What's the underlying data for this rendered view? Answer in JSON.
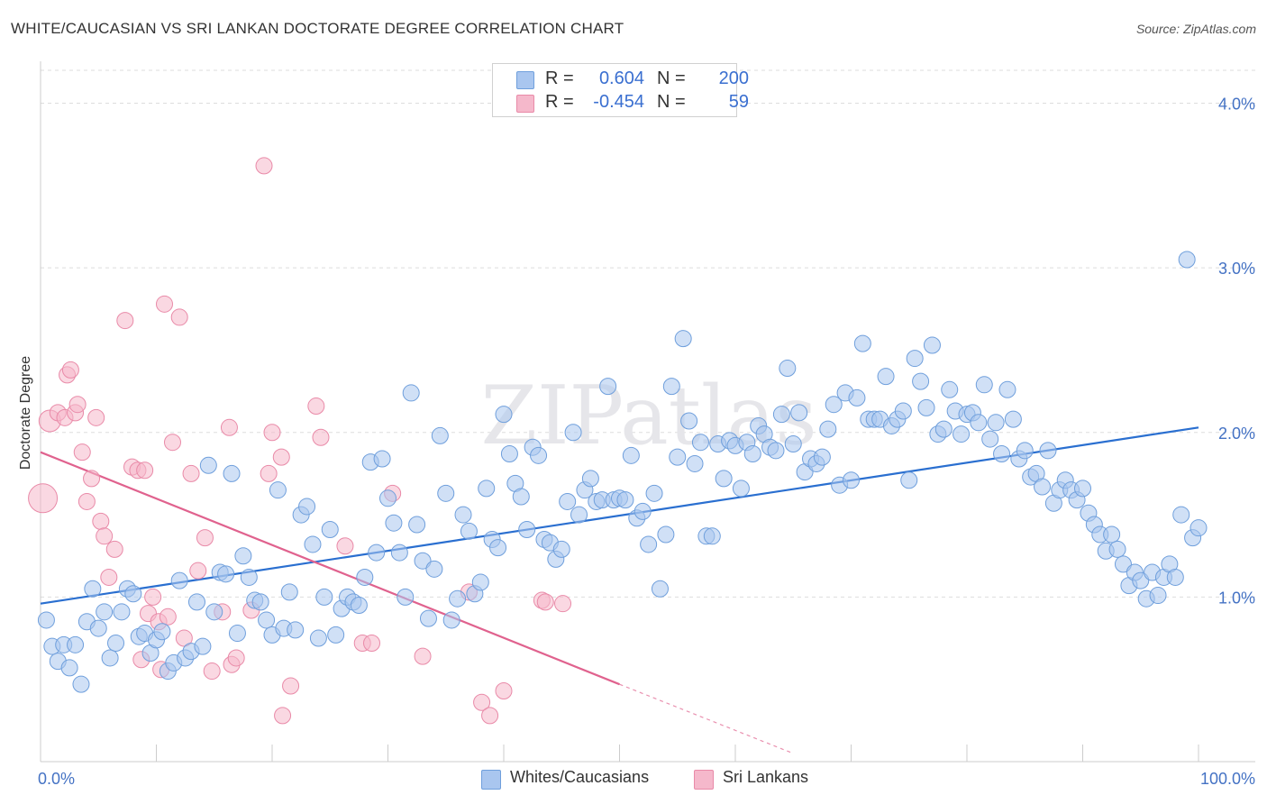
{
  "title": "WHITE/CAUCASIAN VS SRI LANKAN DOCTORATE DEGREE CORRELATION CHART",
  "source": "Source: ZipAtlas.com",
  "watermark": "ZIPatlas",
  "legend_top": {
    "rows": [
      {
        "r_label": "R =",
        "r_value": "0.604",
        "n_label": "N =",
        "n_value": "200"
      },
      {
        "r_label": "R =",
        "r_value": "-0.454",
        "n_label": "N =",
        "n_value": "59"
      }
    ]
  },
  "legend_bottom": {
    "items": [
      {
        "label": "Whites/Caucasians"
      },
      {
        "label": "Sri Lankans"
      }
    ]
  },
  "colors": {
    "blue_fill": "#a9c6ef",
    "blue_stroke": "#6f9fdc",
    "blue_line": "#2a6fd0",
    "pink_fill": "#f5b8cb",
    "pink_stroke": "#e98aa8",
    "pink_line": "#e0628e",
    "grid": "#dddddd",
    "axis_text": "#4472c4"
  },
  "chart_data": {
    "type": "scatter",
    "title": "WHITE/CAUCASIAN VS SRI LANKAN DOCTORATE DEGREE CORRELATION CHART",
    "xlabel": "",
    "ylabel": "Doctorate Degree",
    "xlim": [
      0,
      100
    ],
    "ylim": [
      0,
      4.2
    ],
    "x_tick_labels": [
      "0.0%",
      "100.0%"
    ],
    "y_ticks": [
      1.0,
      2.0,
      3.0,
      4.0
    ],
    "y_tick_labels": [
      "1.0%",
      "2.0%",
      "3.0%",
      "4.0%"
    ],
    "grid": true,
    "series": [
      {
        "name": "Whites/Caucasians",
        "r": 0.604,
        "n": 200,
        "trend": {
          "x0": 0,
          "y0": 0.96,
          "x1": 100,
          "y1": 2.03
        },
        "points": [
          [
            0.5,
            0.86
          ],
          [
            1,
            0.7
          ],
          [
            1.5,
            0.61
          ],
          [
            2,
            0.71
          ],
          [
            2.5,
            0.57
          ],
          [
            3,
            0.71
          ],
          [
            3.5,
            0.47
          ],
          [
            4,
            0.85
          ],
          [
            4.5,
            1.05
          ],
          [
            5,
            0.81
          ],
          [
            5.5,
            0.91
          ],
          [
            6,
            0.63
          ],
          [
            6.5,
            0.72
          ],
          [
            7,
            0.91
          ],
          [
            7.5,
            1.05
          ],
          [
            8,
            1.02
          ],
          [
            8.5,
            0.76
          ],
          [
            9,
            0.78
          ],
          [
            9.5,
            0.66
          ],
          [
            10,
            0.74
          ],
          [
            10.5,
            0.79
          ],
          [
            11,
            0.55
          ],
          [
            11.5,
            0.6
          ],
          [
            12,
            1.1
          ],
          [
            12.5,
            0.63
          ],
          [
            13,
            0.67
          ],
          [
            13.5,
            0.97
          ],
          [
            14,
            0.7
          ],
          [
            14.5,
            1.8
          ],
          [
            15,
            0.91
          ],
          [
            15.5,
            1.15
          ],
          [
            16,
            1.14
          ],
          [
            16.5,
            1.75
          ],
          [
            17,
            0.78
          ],
          [
            17.5,
            1.25
          ],
          [
            18,
            1.12
          ],
          [
            18.5,
            0.98
          ],
          [
            19,
            0.97
          ],
          [
            19.5,
            0.86
          ],
          [
            20,
            0.77
          ],
          [
            20.5,
            1.65
          ],
          [
            21,
            0.81
          ],
          [
            21.5,
            1.03
          ],
          [
            22,
            0.8
          ],
          [
            22.5,
            1.5
          ],
          [
            23,
            1.55
          ],
          [
            23.5,
            1.32
          ],
          [
            24,
            0.75
          ],
          [
            24.5,
            1.0
          ],
          [
            25,
            1.41
          ],
          [
            25.5,
            0.77
          ],
          [
            26,
            0.93
          ],
          [
            26.5,
            1.0
          ],
          [
            27,
            0.97
          ],
          [
            27.5,
            0.95
          ],
          [
            28,
            1.12
          ],
          [
            28.5,
            1.82
          ],
          [
            29,
            1.27
          ],
          [
            29.5,
            1.84
          ],
          [
            30,
            1.6
          ],
          [
            30.5,
            1.45
          ],
          [
            31,
            1.27
          ],
          [
            31.5,
            1.0
          ],
          [
            32,
            2.24
          ],
          [
            32.5,
            1.44
          ],
          [
            33,
            1.22
          ],
          [
            33.5,
            0.87
          ],
          [
            34,
            1.17
          ],
          [
            34.5,
            1.98
          ],
          [
            35,
            1.63
          ],
          [
            35.5,
            0.86
          ],
          [
            36,
            0.99
          ],
          [
            36.5,
            1.5
          ],
          [
            37,
            1.4
          ],
          [
            37.5,
            1.02
          ],
          [
            38,
            1.09
          ],
          [
            38.5,
            1.66
          ],
          [
            39,
            1.35
          ],
          [
            39.5,
            1.3
          ],
          [
            40,
            2.11
          ],
          [
            40.5,
            1.87
          ],
          [
            41,
            1.69
          ],
          [
            41.5,
            1.61
          ],
          [
            42,
            1.41
          ],
          [
            42.5,
            1.91
          ],
          [
            43,
            1.86
          ],
          [
            43.5,
            1.35
          ],
          [
            44,
            1.33
          ],
          [
            44.5,
            1.23
          ],
          [
            45,
            1.29
          ],
          [
            45.5,
            1.58
          ],
          [
            46,
            2.0
          ],
          [
            46.5,
            1.5
          ],
          [
            47,
            1.65
          ],
          [
            47.5,
            1.72
          ],
          [
            48,
            1.58
          ],
          [
            48.5,
            1.59
          ],
          [
            49,
            2.28
          ],
          [
            49.5,
            1.59
          ],
          [
            50,
            1.6
          ],
          [
            50.5,
            1.59
          ],
          [
            51,
            1.86
          ],
          [
            51.5,
            1.48
          ],
          [
            52,
            1.52
          ],
          [
            52.5,
            1.32
          ],
          [
            53,
            1.63
          ],
          [
            53.5,
            1.05
          ],
          [
            54,
            1.38
          ],
          [
            54.5,
            2.28
          ],
          [
            55,
            1.85
          ],
          [
            55.5,
            2.57
          ],
          [
            56,
            2.07
          ],
          [
            56.5,
            1.81
          ],
          [
            57,
            1.94
          ],
          [
            57.5,
            1.37
          ],
          [
            58,
            1.37
          ],
          [
            58.5,
            1.93
          ],
          [
            59,
            1.72
          ],
          [
            59.5,
            1.95
          ],
          [
            60,
            1.92
          ],
          [
            60.5,
            1.66
          ],
          [
            61,
            1.94
          ],
          [
            61.5,
            1.87
          ],
          [
            62,
            2.04
          ],
          [
            62.5,
            1.99
          ],
          [
            63,
            1.91
          ],
          [
            63.5,
            1.89
          ],
          [
            64,
            2.11
          ],
          [
            64.5,
            2.39
          ],
          [
            65,
            1.93
          ],
          [
            65.5,
            2.12
          ],
          [
            66,
            1.76
          ],
          [
            66.5,
            1.84
          ],
          [
            67,
            1.81
          ],
          [
            67.5,
            1.85
          ],
          [
            68,
            2.02
          ],
          [
            68.5,
            2.17
          ],
          [
            69,
            1.68
          ],
          [
            69.5,
            2.24
          ],
          [
            70,
            1.71
          ],
          [
            70.5,
            2.21
          ],
          [
            71,
            2.54
          ],
          [
            71.5,
            2.08
          ],
          [
            72,
            2.08
          ],
          [
            72.5,
            2.08
          ],
          [
            73,
            2.34
          ],
          [
            73.5,
            2.04
          ],
          [
            74,
            2.08
          ],
          [
            74.5,
            2.13
          ],
          [
            75,
            1.71
          ],
          [
            75.5,
            2.45
          ],
          [
            76,
            2.31
          ],
          [
            76.5,
            2.15
          ],
          [
            77,
            2.53
          ],
          [
            77.5,
            1.99
          ],
          [
            78,
            2.02
          ],
          [
            78.5,
            2.26
          ],
          [
            79,
            2.13
          ],
          [
            79.5,
            1.99
          ],
          [
            80,
            2.11
          ],
          [
            80.5,
            2.12
          ],
          [
            81,
            2.06
          ],
          [
            81.5,
            2.29
          ],
          [
            82,
            1.96
          ],
          [
            82.5,
            2.06
          ],
          [
            83,
            1.87
          ],
          [
            83.5,
            2.26
          ],
          [
            84,
            2.08
          ],
          [
            84.5,
            1.84
          ],
          [
            85,
            1.89
          ],
          [
            85.5,
            1.73
          ],
          [
            86,
            1.75
          ],
          [
            86.5,
            1.67
          ],
          [
            87,
            1.89
          ],
          [
            87.5,
            1.57
          ],
          [
            88,
            1.65
          ],
          [
            88.5,
            1.71
          ],
          [
            89,
            1.65
          ],
          [
            89.5,
            1.59
          ],
          [
            90,
            1.66
          ],
          [
            90.5,
            1.51
          ],
          [
            91,
            1.44
          ],
          [
            91.5,
            1.38
          ],
          [
            92,
            1.28
          ],
          [
            92.5,
            1.38
          ],
          [
            93,
            1.29
          ],
          [
            93.5,
            1.2
          ],
          [
            94,
            1.07
          ],
          [
            94.5,
            1.15
          ],
          [
            95,
            1.1
          ],
          [
            95.5,
            0.99
          ],
          [
            96,
            1.15
          ],
          [
            96.5,
            1.01
          ],
          [
            97,
            1.12
          ],
          [
            97.5,
            1.2
          ],
          [
            98,
            1.12
          ],
          [
            98.5,
            1.5
          ],
          [
            99,
            3.05
          ],
          [
            99.5,
            1.36
          ],
          [
            100,
            1.42
          ]
        ]
      },
      {
        "name": "Sri Lankans",
        "r": -0.454,
        "n": 59,
        "trend": {
          "x0": 0,
          "y0": 1.88,
          "x1": 50,
          "y1": 0.47,
          "dashed_to": {
            "x": 65,
            "y": 0.05
          }
        },
        "points": [
          [
            0.2,
            1.6
          ],
          [
            0.8,
            2.07
          ],
          [
            1.5,
            2.12
          ],
          [
            2.1,
            2.09
          ],
          [
            2.3,
            2.35
          ],
          [
            2.6,
            2.38
          ],
          [
            3,
            2.12
          ],
          [
            3.2,
            2.17
          ],
          [
            3.6,
            1.88
          ],
          [
            4,
            1.58
          ],
          [
            4.4,
            1.72
          ],
          [
            4.8,
            2.09
          ],
          [
            5.2,
            1.46
          ],
          [
            5.5,
            1.37
          ],
          [
            5.9,
            1.12
          ],
          [
            6.4,
            1.29
          ],
          [
            7.3,
            2.68
          ],
          [
            7.9,
            1.79
          ],
          [
            8.4,
            1.77
          ],
          [
            8.7,
            0.62
          ],
          [
            9,
            1.77
          ],
          [
            9.3,
            0.9
          ],
          [
            9.7,
            1.0
          ],
          [
            10.2,
            0.85
          ],
          [
            10.4,
            0.56
          ],
          [
            10.7,
            2.78
          ],
          [
            11,
            0.88
          ],
          [
            11.4,
            1.94
          ],
          [
            12,
            2.7
          ],
          [
            12.4,
            0.75
          ],
          [
            13,
            1.75
          ],
          [
            13.6,
            1.16
          ],
          [
            14.2,
            1.36
          ],
          [
            14.8,
            0.55
          ],
          [
            15.7,
            0.91
          ],
          [
            16.3,
            2.03
          ],
          [
            16.5,
            0.59
          ],
          [
            16.9,
            0.63
          ],
          [
            18.2,
            0.92
          ],
          [
            19.3,
            3.62
          ],
          [
            19.7,
            1.75
          ],
          [
            20,
            2.0
          ],
          [
            20.8,
            1.85
          ],
          [
            20.9,
            0.28
          ],
          [
            21.6,
            0.46
          ],
          [
            23.8,
            2.16
          ],
          [
            24.2,
            1.97
          ],
          [
            26.3,
            1.31
          ],
          [
            27.8,
            0.72
          ],
          [
            28.6,
            0.72
          ],
          [
            30.4,
            1.63
          ],
          [
            33,
            0.64
          ],
          [
            37,
            1.03
          ],
          [
            38.1,
            0.36
          ],
          [
            38.8,
            0.28
          ],
          [
            40,
            0.43
          ],
          [
            43.3,
            0.98
          ],
          [
            43.6,
            0.97
          ],
          [
            45.1,
            0.96
          ]
        ]
      }
    ]
  }
}
